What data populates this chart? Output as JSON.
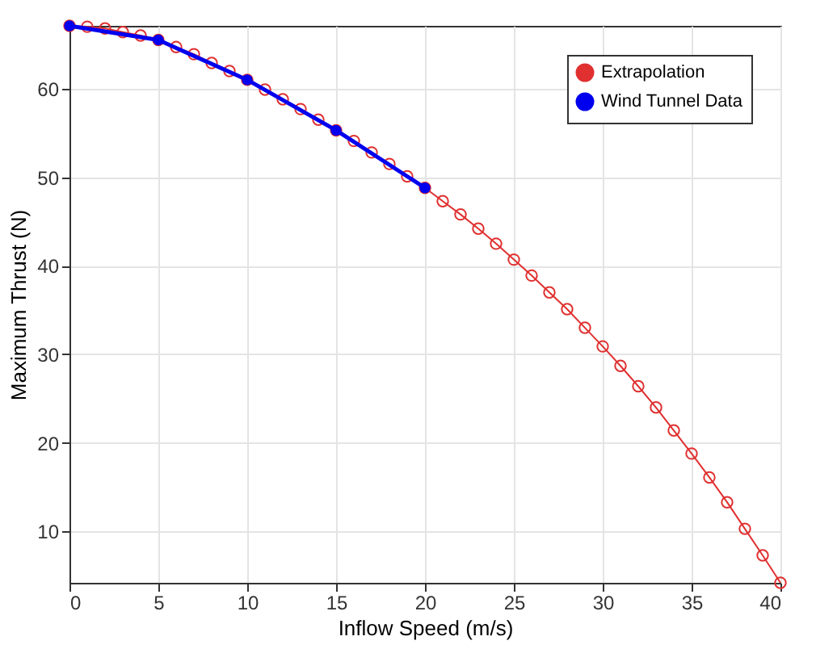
{
  "chart_data": {
    "type": "line",
    "xlabel": "Inflow Speed (m/s)",
    "ylabel": "Maximum Thrust (N)",
    "xlim": [
      0,
      40
    ],
    "xticks": [
      0,
      5,
      10,
      15,
      20,
      25,
      30,
      35,
      40
    ],
    "ylim": [
      4.2,
      67.1
    ],
    "yticks": [
      10,
      20,
      30,
      40,
      50,
      60
    ],
    "grid": true,
    "legend": "top right",
    "series": [
      {
        "name": "Extrapolation",
        "color": "#e03030",
        "marker": "circle",
        "x": [
          0,
          1,
          2,
          3,
          4,
          5,
          6,
          7,
          8,
          9,
          10,
          11,
          12,
          13,
          14,
          15,
          16,
          17,
          18,
          19,
          20,
          21,
          22,
          23,
          24,
          25,
          26,
          27,
          28,
          29,
          30,
          31,
          32,
          33,
          34,
          35,
          36,
          37,
          38,
          39,
          40
        ],
        "values": [
          67.1,
          67.0,
          66.8,
          66.4,
          66.0,
          65.5,
          64.7,
          63.9,
          62.9,
          62.0,
          61.0,
          59.9,
          58.8,
          57.7,
          56.5,
          55.3,
          54.1,
          52.8,
          51.5,
          50.1,
          48.8,
          47.3,
          45.8,
          44.2,
          42.5,
          40.7,
          38.9,
          37.0,
          35.1,
          33.0,
          30.9,
          28.7,
          26.4,
          24.0,
          21.4,
          18.8,
          16.1,
          13.3,
          10.3,
          7.3,
          4.2
        ]
      },
      {
        "name": "Wind Tunnel Data",
        "color": "#0000ee",
        "marker": "circle",
        "x": [
          0,
          5,
          10,
          15,
          20
        ],
        "values": [
          67.1,
          65.5,
          61.0,
          55.3,
          48.8
        ]
      }
    ]
  }
}
